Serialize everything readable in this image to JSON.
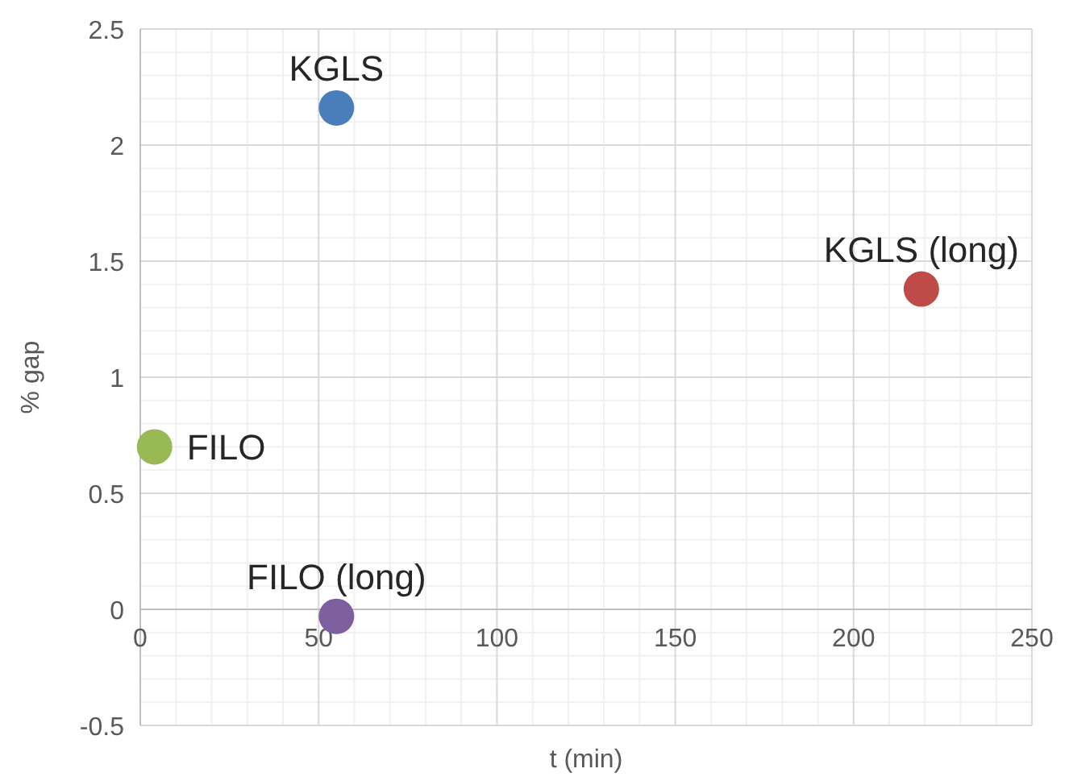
{
  "chart_data": {
    "type": "scatter",
    "xlabel": "t (min)",
    "ylabel": "% gap",
    "xlim": [
      0,
      250
    ],
    "xticks": [
      0,
      50,
      100,
      150,
      200,
      250
    ],
    "ylim": [
      -0.5,
      2.5
    ],
    "yticks": [
      -0.5,
      0,
      0.5,
      1,
      1.5,
      2,
      2.5
    ],
    "grid": true,
    "marker": "circle",
    "series": [
      {
        "name": "KGLS",
        "color": "#4a7ebb",
        "x": [
          55
        ],
        "values": [
          2.16
        ]
      },
      {
        "name": "KGLS (long)",
        "color": "#be4b48",
        "x": [
          219
        ],
        "values": [
          1.38
        ]
      },
      {
        "name": "FILO",
        "color": "#98b954",
        "x": [
          4
        ],
        "values": [
          0.7
        ]
      },
      {
        "name": "FILO (long)",
        "color": "#7d5fa0",
        "x": [
          55
        ],
        "values": [
          -0.03
        ]
      }
    ]
  }
}
